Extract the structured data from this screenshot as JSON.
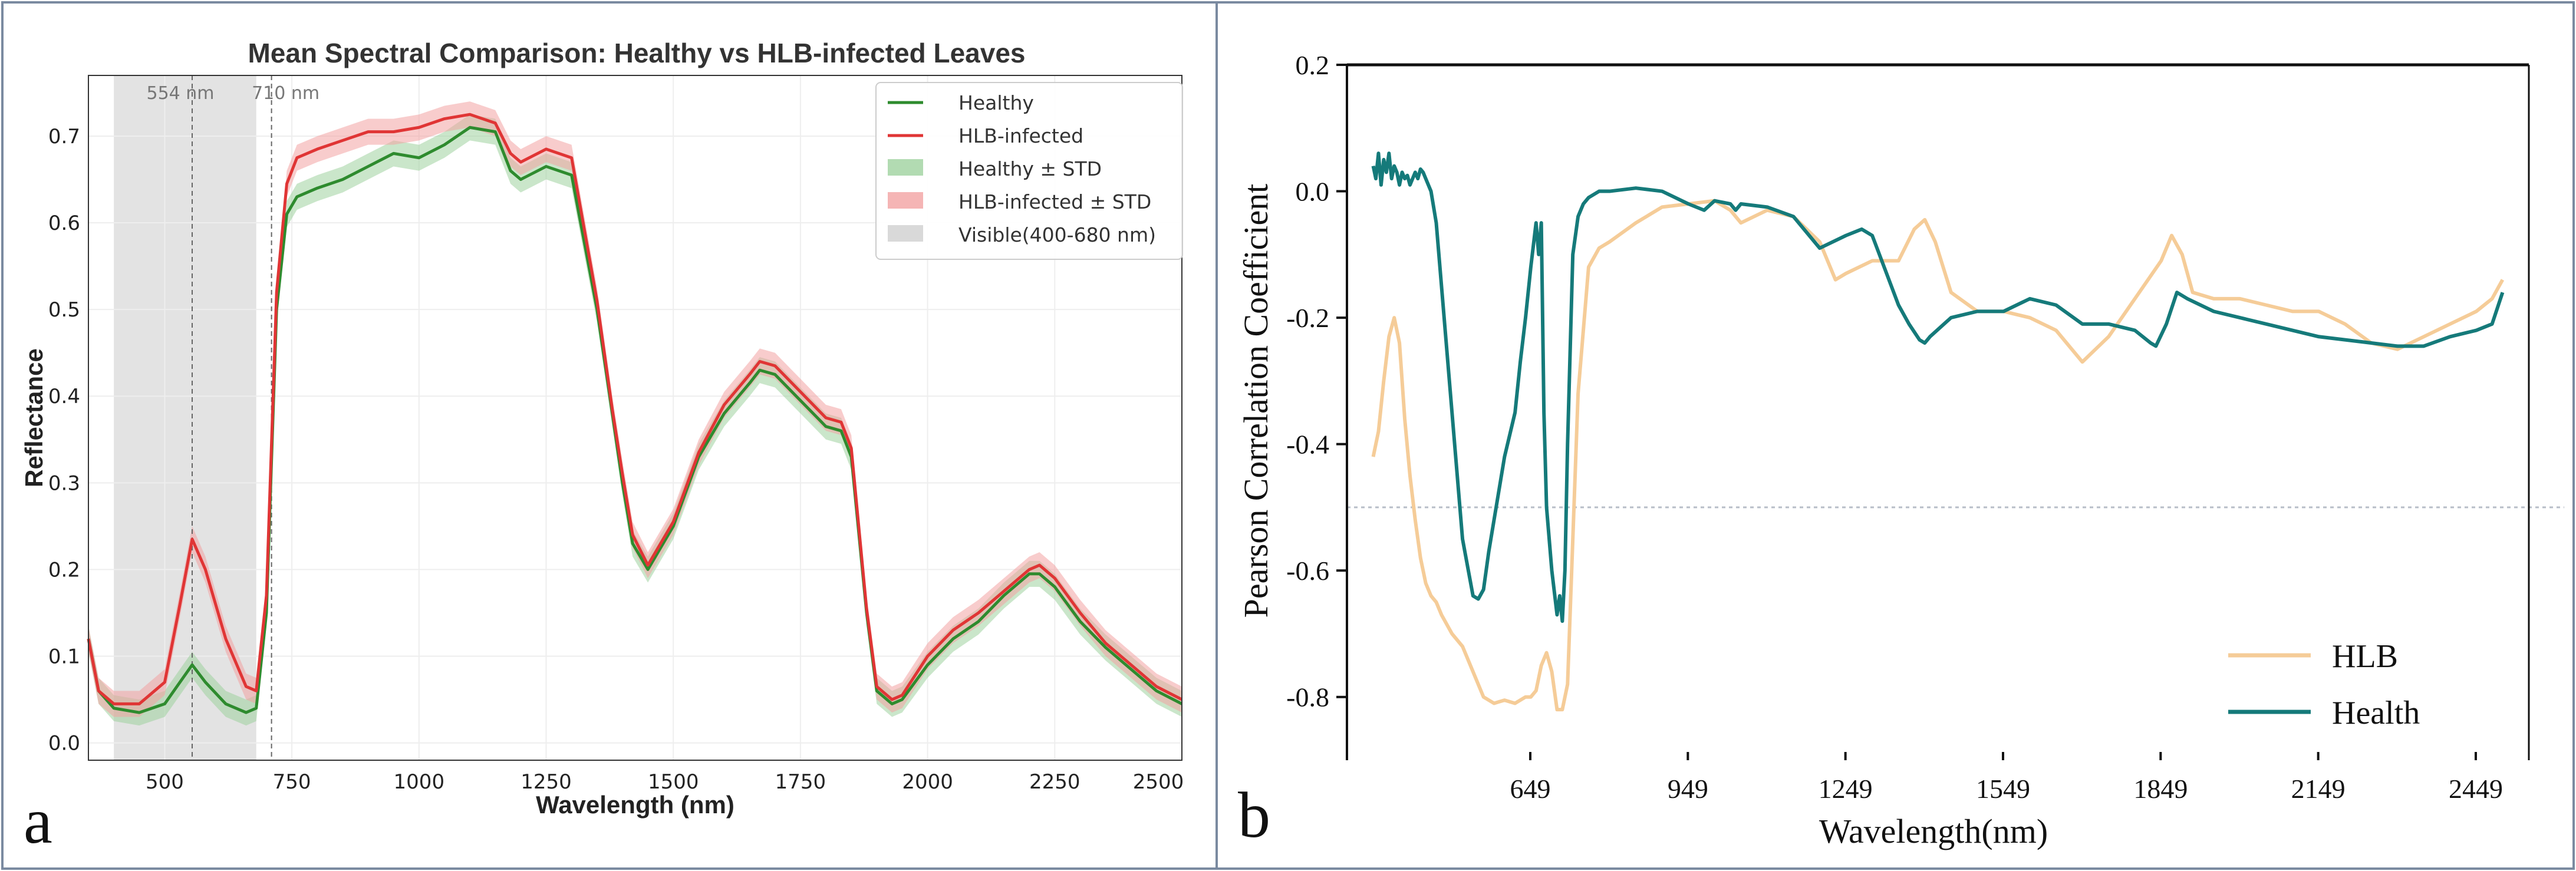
{
  "chart_data": [
    {
      "panel_label": "a",
      "type": "line",
      "title": "Mean Spectral Comparison: Healthy vs HLB-infected Leaves",
      "xlabel": "Wavelength (nm)",
      "ylabel": "Reflectance",
      "xlim": [
        350,
        2500
      ],
      "ylim": [
        -0.02,
        0.77
      ],
      "xticks": [
        "500",
        "750",
        "1000",
        "1250",
        "1500",
        "1750",
        "2000",
        "2250",
        "2500"
      ],
      "yticks": [
        "0.0",
        "0.1",
        "0.2",
        "0.3",
        "0.4",
        "0.5",
        "0.6",
        "0.7"
      ],
      "grid": true,
      "legend_position": "top-right",
      "legend": [
        "Healthy",
        "HLB-infected",
        "Healthy ± STD",
        "HLB-infected ± STD",
        "Visible(400-680 nm)"
      ],
      "annotations": [
        "554 nm",
        "710 nm"
      ],
      "shaded_region": [
        400,
        680
      ],
      "marker_lines": [
        554,
        710
      ],
      "colors": {
        "healthy": "#2e8b2e",
        "hlb": "#e03535",
        "healthy_band": "#9fd29f",
        "hlb_band": "#f2a3a3",
        "visible": "#d9d9d9"
      },
      "series": [
        {
          "name": "Healthy",
          "std": 0.015,
          "x": [
            350,
            370,
            400,
            450,
            500,
            530,
            554,
            580,
            620,
            660,
            680,
            700,
            720,
            740,
            760,
            800,
            850,
            900,
            950,
            1000,
            1050,
            1100,
            1150,
            1180,
            1200,
            1250,
            1300,
            1350,
            1380,
            1400,
            1420,
            1450,
            1500,
            1550,
            1600,
            1650,
            1670,
            1700,
            1750,
            1800,
            1830,
            1850,
            1880,
            1900,
            1930,
            1950,
            2000,
            2050,
            2100,
            2150,
            2200,
            2220,
            2250,
            2300,
            2350,
            2400,
            2450,
            2500
          ],
          "y": [
            0.12,
            0.06,
            0.04,
            0.035,
            0.045,
            0.07,
            0.09,
            0.07,
            0.045,
            0.035,
            0.04,
            0.15,
            0.5,
            0.61,
            0.63,
            0.64,
            0.65,
            0.665,
            0.68,
            0.675,
            0.69,
            0.71,
            0.705,
            0.66,
            0.65,
            0.665,
            0.655,
            0.5,
            0.38,
            0.3,
            0.23,
            0.2,
            0.25,
            0.33,
            0.38,
            0.415,
            0.43,
            0.425,
            0.395,
            0.365,
            0.36,
            0.33,
            0.15,
            0.06,
            0.045,
            0.05,
            0.09,
            0.12,
            0.14,
            0.17,
            0.195,
            0.195,
            0.18,
            0.14,
            0.11,
            0.085,
            0.06,
            0.045
          ]
        },
        {
          "name": "HLB-infected",
          "std": 0.015,
          "x": [
            350,
            370,
            400,
            450,
            500,
            530,
            554,
            580,
            620,
            660,
            680,
            700,
            720,
            740,
            760,
            800,
            850,
            900,
            950,
            1000,
            1050,
            1100,
            1150,
            1180,
            1200,
            1250,
            1300,
            1350,
            1380,
            1400,
            1420,
            1450,
            1500,
            1550,
            1600,
            1650,
            1670,
            1700,
            1750,
            1800,
            1830,
            1850,
            1880,
            1900,
            1930,
            1950,
            2000,
            2050,
            2100,
            2150,
            2200,
            2220,
            2250,
            2300,
            2350,
            2400,
            2450,
            2500
          ],
          "y": [
            0.12,
            0.06,
            0.045,
            0.045,
            0.07,
            0.16,
            0.235,
            0.2,
            0.12,
            0.065,
            0.06,
            0.17,
            0.52,
            0.645,
            0.675,
            0.685,
            0.695,
            0.705,
            0.705,
            0.71,
            0.72,
            0.725,
            0.715,
            0.68,
            0.67,
            0.685,
            0.675,
            0.51,
            0.385,
            0.31,
            0.24,
            0.205,
            0.255,
            0.335,
            0.39,
            0.425,
            0.44,
            0.435,
            0.405,
            0.375,
            0.37,
            0.34,
            0.155,
            0.065,
            0.05,
            0.055,
            0.1,
            0.13,
            0.15,
            0.175,
            0.2,
            0.205,
            0.19,
            0.15,
            0.115,
            0.09,
            0.065,
            0.05
          ]
        }
      ]
    },
    {
      "panel_label": "b",
      "type": "line",
      "xlabel": "Wavelength(nm)",
      "ylabel": "Pearson Correlation Coefficient",
      "xlim": [
        300,
        2550
      ],
      "ylim": [
        -0.9,
        0.2
      ],
      "xticks": [
        "649",
        "949",
        "1249",
        "1549",
        "1849",
        "2149",
        "2449"
      ],
      "yticks": [
        "0.2",
        "0.0",
        "-0.2",
        "-0.4",
        "-0.6",
        "-0.8"
      ],
      "reference_line": -0.5,
      "grid": false,
      "legend_position": "bottom-right",
      "legend": [
        "HLB",
        "Health"
      ],
      "colors": {
        "HLB": "#f5cc98",
        "Health": "#157a7a"
      },
      "series": [
        {
          "name": "HLB",
          "x": [
            350,
            360,
            370,
            380,
            390,
            400,
            410,
            420,
            430,
            440,
            450,
            460,
            470,
            480,
            500,
            520,
            540,
            560,
            580,
            600,
            620,
            640,
            650,
            660,
            670,
            680,
            690,
            700,
            710,
            720,
            730,
            740,
            760,
            780,
            800,
            850,
            900,
            950,
            1000,
            1030,
            1050,
            1100,
            1150,
            1200,
            1230,
            1250,
            1300,
            1350,
            1380,
            1400,
            1420,
            1450,
            1500,
            1550,
            1600,
            1650,
            1700,
            1750,
            1800,
            1850,
            1870,
            1890,
            1910,
            1950,
            2000,
            2050,
            2100,
            2150,
            2200,
            2250,
            2300,
            2350,
            2400,
            2450,
            2480,
            2500
          ],
          "y": [
            -0.42,
            -0.38,
            -0.3,
            -0.23,
            -0.2,
            -0.24,
            -0.36,
            -0.45,
            -0.52,
            -0.58,
            -0.62,
            -0.64,
            -0.65,
            -0.67,
            -0.7,
            -0.72,
            -0.76,
            -0.8,
            -0.81,
            -0.805,
            -0.81,
            -0.8,
            -0.8,
            -0.79,
            -0.75,
            -0.73,
            -0.76,
            -0.82,
            -0.82,
            -0.78,
            -0.55,
            -0.32,
            -0.12,
            -0.09,
            -0.08,
            -0.05,
            -0.025,
            -0.02,
            -0.015,
            -0.03,
            -0.05,
            -0.03,
            -0.04,
            -0.08,
            -0.14,
            -0.13,
            -0.11,
            -0.11,
            -0.06,
            -0.045,
            -0.08,
            -0.16,
            -0.19,
            -0.19,
            -0.2,
            -0.22,
            -0.27,
            -0.23,
            -0.17,
            -0.11,
            -0.07,
            -0.1,
            -0.16,
            -0.17,
            -0.17,
            -0.18,
            -0.19,
            -0.19,
            -0.21,
            -0.24,
            -0.25,
            -0.23,
            -0.21,
            -0.19,
            -0.17,
            -0.14
          ]
        },
        {
          "name": "Health",
          "x": [
            350,
            355,
            360,
            365,
            370,
            375,
            380,
            385,
            390,
            395,
            400,
            405,
            410,
            415,
            420,
            425,
            430,
            435,
            440,
            445,
            450,
            460,
            470,
            480,
            500,
            520,
            540,
            550,
            560,
            570,
            580,
            600,
            620,
            630,
            640,
            650,
            660,
            665,
            670,
            675,
            680,
            690,
            700,
            705,
            710,
            715,
            720,
            730,
            740,
            750,
            760,
            780,
            800,
            850,
            900,
            950,
            980,
            1000,
            1030,
            1040,
            1050,
            1100,
            1150,
            1200,
            1250,
            1280,
            1300,
            1350,
            1370,
            1390,
            1400,
            1410,
            1450,
            1500,
            1550,
            1600,
            1650,
            1700,
            1750,
            1800,
            1830,
            1840,
            1860,
            1880,
            1900,
            1950,
            2000,
            2050,
            2100,
            2150,
            2200,
            2250,
            2300,
            2350,
            2400,
            2450,
            2480,
            2500
          ],
          "y": [
            0.04,
            0.02,
            0.06,
            0.01,
            0.05,
            0.03,
            0.06,
            0.02,
            0.04,
            0.03,
            0.01,
            0.03,
            0.02,
            0.025,
            0.01,
            0.02,
            0.03,
            0.02,
            0.035,
            0.03,
            0.02,
            0.0,
            -0.05,
            -0.15,
            -0.35,
            -0.55,
            -0.64,
            -0.645,
            -0.63,
            -0.57,
            -0.52,
            -0.42,
            -0.35,
            -0.27,
            -0.2,
            -0.12,
            -0.05,
            -0.1,
            -0.05,
            -0.35,
            -0.5,
            -0.6,
            -0.67,
            -0.64,
            -0.68,
            -0.6,
            -0.4,
            -0.1,
            -0.04,
            -0.02,
            -0.01,
            0.0,
            0.0,
            0.005,
            0.0,
            -0.02,
            -0.03,
            -0.015,
            -0.02,
            -0.03,
            -0.02,
            -0.025,
            -0.04,
            -0.09,
            -0.07,
            -0.06,
            -0.07,
            -0.18,
            -0.21,
            -0.235,
            -0.24,
            -0.23,
            -0.2,
            -0.19,
            -0.19,
            -0.17,
            -0.18,
            -0.21,
            -0.21,
            -0.22,
            -0.24,
            -0.245,
            -0.21,
            -0.16,
            -0.17,
            -0.19,
            -0.2,
            -0.21,
            -0.22,
            -0.23,
            -0.235,
            -0.24,
            -0.245,
            -0.245,
            -0.23,
            -0.22,
            -0.21,
            -0.16
          ]
        }
      ]
    }
  ]
}
